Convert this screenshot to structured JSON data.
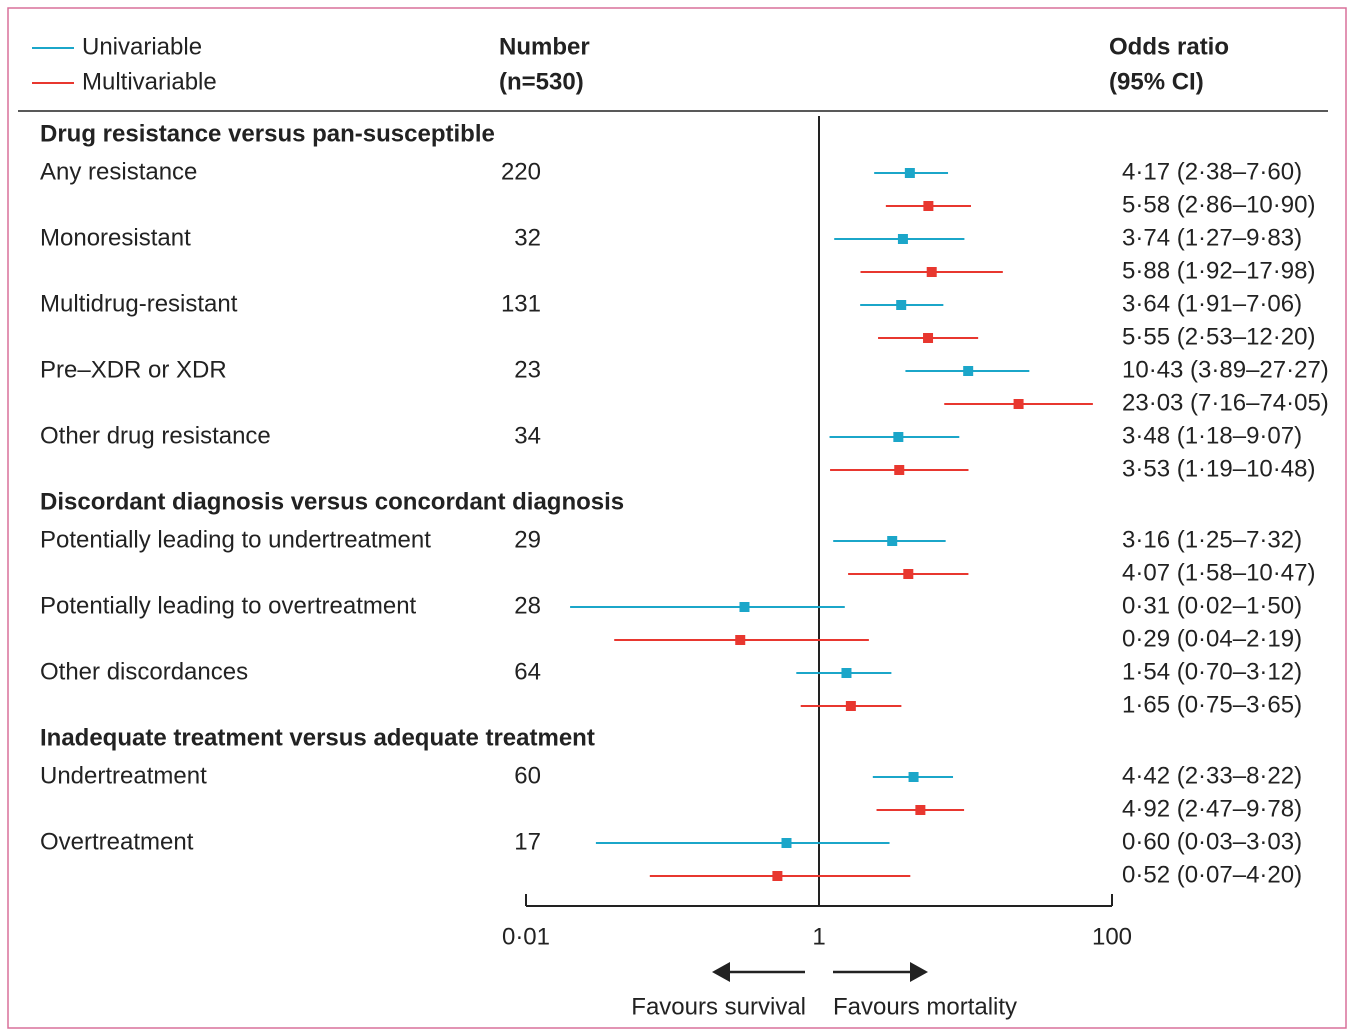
{
  "chart_data": {
    "type": "forest",
    "series": [
      {
        "name": "Univariable",
        "color": "#1ba6c9"
      },
      {
        "name": "Multivariable",
        "color": "#e8372f"
      }
    ],
    "columns": {
      "number": [
        "Number",
        "(n=530)"
      ],
      "estimate": [
        "Odds ratio",
        "(95% CI)"
      ]
    },
    "xlim": [
      0.01,
      100
    ],
    "xticks": [
      {
        "value": 0.01,
        "label": "0·01"
      },
      1,
      100
    ],
    "log_x": true,
    "annotations": [
      "Favours survival",
      "Favours mortality"
    ],
    "groups": [
      {
        "title": "Drug resistance versus pan-susceptible",
        "rows": [
          {
            "label": "Any resistance",
            "number": 220,
            "estimates": [
              {
                "value": 4.17,
                "lower": 2.38,
                "upper": 7.6,
                "label": "4·17 (2·38–7·60)"
              },
              {
                "value": 5.58,
                "lower": 2.86,
                "upper": 10.9,
                "label": "5·58 (2·86–10·90)"
              }
            ]
          },
          {
            "label": "Monoresistant",
            "number": 32,
            "estimates": [
              {
                "value": 3.74,
                "lower": 1.27,
                "upper": 9.83,
                "label": "3·74 (1·27–9·83)"
              },
              {
                "value": 5.88,
                "lower": 1.92,
                "upper": 17.98,
                "label": "5·88 (1·92–17·98)"
              }
            ]
          },
          {
            "label": "Multidrug-resistant",
            "number": 131,
            "estimates": [
              {
                "value": 3.64,
                "lower": 1.91,
                "upper": 7.06,
                "label": "3·64 (1·91–7·06)"
              },
              {
                "value": 5.55,
                "lower": 2.53,
                "upper": 12.2,
                "label": "5·55 (2·53–12·20)"
              }
            ]
          },
          {
            "label": "Pre–XDR or XDR",
            "number": 23,
            "estimates": [
              {
                "value": 10.43,
                "lower": 3.89,
                "upper": 27.27,
                "label": "10·43 (3·89–27·27)"
              },
              {
                "value": 23.03,
                "lower": 7.16,
                "upper": 74.05,
                "label": "23·03 (7·16–74·05)"
              }
            ]
          },
          {
            "label": "Other drug resistance",
            "number": 34,
            "estimates": [
              {
                "value": 3.48,
                "lower": 1.18,
                "upper": 9.07,
                "label": "3·48 (1·18–9·07)"
              },
              {
                "value": 3.53,
                "lower": 1.19,
                "upper": 10.48,
                "label": "3·53 (1·19–10·48)"
              }
            ]
          }
        ]
      },
      {
        "title": "Discordant diagnosis versus concordant diagnosis",
        "rows": [
          {
            "label": "Potentially leading to undertreatment",
            "number": 29,
            "estimates": [
              {
                "value": 3.16,
                "lower": 1.25,
                "upper": 7.32,
                "label": "3·16 (1·25–7·32)"
              },
              {
                "value": 4.07,
                "lower": 1.58,
                "upper": 10.47,
                "label": "4·07 (1·58–10·47)"
              }
            ]
          },
          {
            "label": "Potentially leading to overtreatment",
            "number": 28,
            "estimates": [
              {
                "value": 0.31,
                "lower": 0.02,
                "upper": 1.5,
                "label": "0·31 (0·02–1·50)"
              },
              {
                "value": 0.29,
                "lower": 0.04,
                "upper": 2.19,
                "label": "0·29 (0·04–2·19)"
              }
            ]
          },
          {
            "label": "Other discordances",
            "number": 64,
            "estimates": [
              {
                "value": 1.54,
                "lower": 0.7,
                "upper": 3.12,
                "label": "1·54 (0·70–3·12)"
              },
              {
                "value": 1.65,
                "lower": 0.75,
                "upper": 3.65,
                "label": "1·65 (0·75–3·65)"
              }
            ]
          }
        ]
      },
      {
        "title": "Inadequate treatment versus adequate treatment",
        "rows": [
          {
            "label": "Undertreatment",
            "number": 60,
            "estimates": [
              {
                "value": 4.42,
                "lower": 2.33,
                "upper": 8.22,
                "label": "4·42 (2·33–8·22)"
              },
              {
                "value": 4.92,
                "lower": 2.47,
                "upper": 9.78,
                "label": "4·92 (2·47–9·78)"
              }
            ]
          },
          {
            "label": "Overtreatment",
            "number": 17,
            "estimates": [
              {
                "value": 0.6,
                "lower": 0.03,
                "upper": 3.03,
                "label": "0·60 (0·03–3·03)"
              },
              {
                "value": 0.52,
                "lower": 0.07,
                "upper": 4.2,
                "label": "0·52 (0·07–4·20)"
              }
            ]
          }
        ]
      }
    ]
  }
}
